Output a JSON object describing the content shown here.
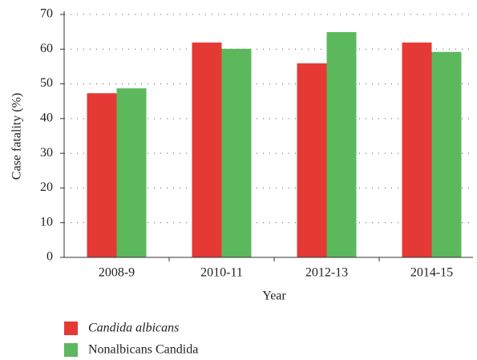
{
  "chart_data": {
    "type": "bar",
    "x_label": "Year",
    "y_label": "Case fatality (%)",
    "categories": [
      "2008-9",
      "2010-11",
      "2012-13",
      "2014-15"
    ],
    "series": [
      {
        "name": "Candida albicans",
        "color": "#e53935",
        "values": [
          47.3,
          61.9,
          55.9,
          61.9
        ]
      },
      {
        "name": "Nonalbicans Candida",
        "color": "#5cb85c",
        "values": [
          48.7,
          60.1,
          64.9,
          59.2
        ]
      }
    ],
    "ylim": [
      0,
      70
    ],
    "yticks": [
      0,
      10,
      20,
      30,
      40,
      50,
      60,
      70
    ],
    "grid": true
  }
}
